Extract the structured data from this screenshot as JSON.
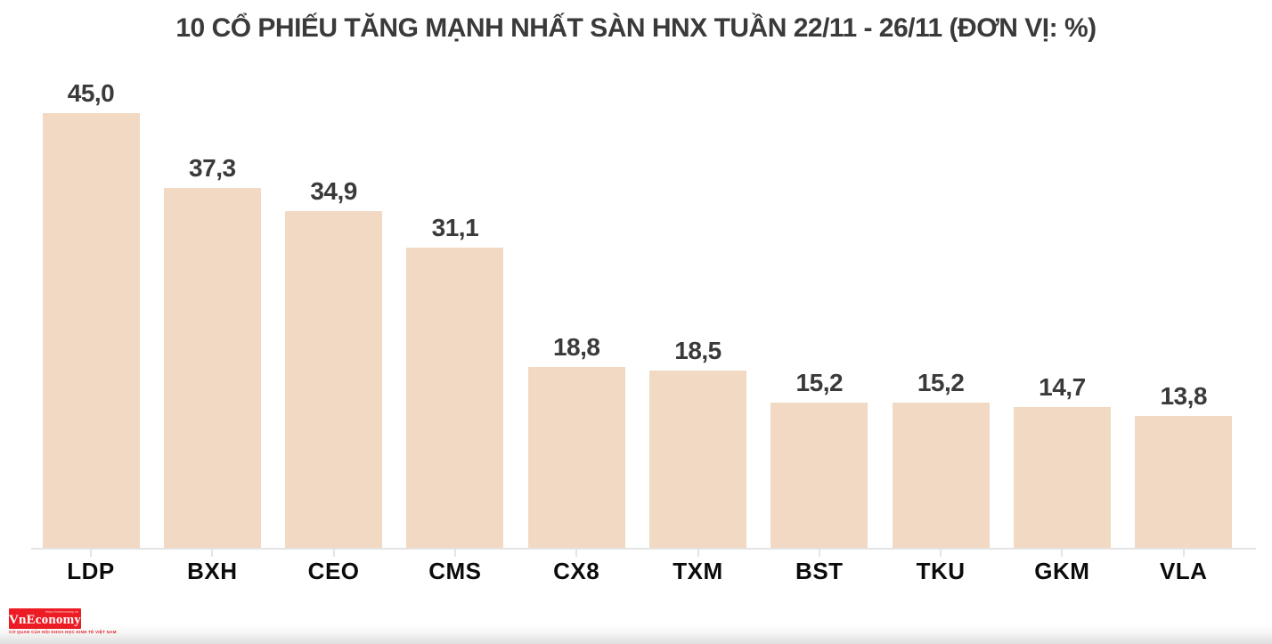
{
  "chart_data": {
    "type": "bar",
    "title": "10 CỔ PHIẾU TĂNG MẠNH NHẤT SÀN HNX TUẦN 22/11 - 26/11 (ĐƠN VỊ: %)",
    "categories": [
      "LDP",
      "BXH",
      "CEO",
      "CMS",
      "CX8",
      "TXM",
      "BST",
      "TKU",
      "GKM",
      "VLA"
    ],
    "values": [
      45.0,
      37.3,
      34.9,
      31.1,
      18.8,
      18.5,
      15.2,
      15.2,
      14.7,
      13.8
    ],
    "value_labels": [
      "45,0",
      "37,3",
      "34,9",
      "31,1",
      "18,8",
      "18,5",
      "15,2",
      "15,2",
      "14,7",
      "13,8"
    ],
    "xlabel": "",
    "ylabel": "",
    "unit": "%",
    "ylim": [
      0,
      45
    ],
    "grid": false,
    "legend": false,
    "bar_color": "#f2d9c3",
    "value_label_color": "#3a3a3a",
    "category_label_color": "#0b0b0b",
    "axis_color": "#e4e4e4"
  },
  "logo": {
    "name": "VnEconomy",
    "top_text": "https://vneconomy.vn",
    "tagline": "CƠ QUAN CỦA HỘI KHOA HỌC KINH TẾ VIỆT NAM",
    "box_color": "#ed1c24",
    "tagline_color": "#ed1c24"
  }
}
